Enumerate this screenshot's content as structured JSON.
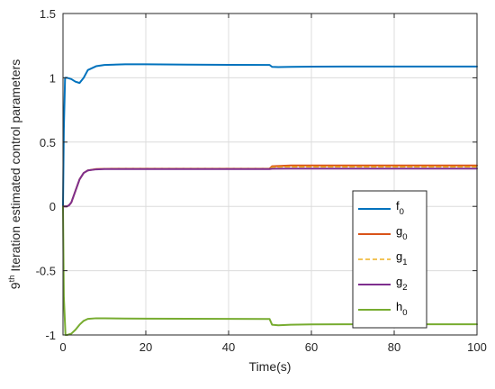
{
  "chart_data": {
    "type": "line",
    "title": "",
    "xlabel": "Time(s)",
    "ylabel": {
      "prefix": "9",
      "superscript": "th",
      "text": " Iteration estimated control parameters"
    },
    "xlim": [
      0,
      100
    ],
    "ylim": [
      -1,
      1.5
    ],
    "xticks": [
      0,
      20,
      40,
      60,
      80,
      100
    ],
    "yticks": [
      -1,
      -0.5,
      0,
      0.5,
      1,
      1.5
    ],
    "xtick_labels": [
      "0",
      "20",
      "40",
      "60",
      "80",
      "100"
    ],
    "ytick_labels": [
      "-1",
      "-0.5",
      "0",
      "0.5",
      "1",
      "1.5"
    ],
    "grid": true,
    "legend_position": "right",
    "series": [
      {
        "name": "f",
        "subscript": "0",
        "color": "#0072BD",
        "dash": "solid",
        "x": [
          0,
          0.2,
          0.5,
          1,
          2,
          3,
          4,
          5,
          6,
          8,
          10,
          15,
          20,
          30,
          40,
          49.9,
          50.5,
          52,
          55,
          60,
          70,
          80,
          90,
          100
        ],
        "y": [
          0.0,
          0.6,
          1.0,
          1.0,
          0.99,
          0.97,
          0.96,
          1.0,
          1.06,
          1.09,
          1.1,
          1.105,
          1.105,
          1.103,
          1.101,
          1.1,
          1.085,
          1.083,
          1.085,
          1.087,
          1.088,
          1.088,
          1.088,
          1.088
        ]
      },
      {
        "name": "g",
        "subscript": "0",
        "color": "#D95319",
        "dash": "solid",
        "x": [
          0,
          1,
          1.5,
          2,
          3,
          4,
          5,
          6,
          8,
          10,
          15,
          20,
          30,
          40,
          49.9,
          50.5,
          55,
          60,
          80,
          100
        ],
        "y": [
          0.0,
          0.0,
          0.01,
          0.03,
          0.12,
          0.21,
          0.26,
          0.28,
          0.29,
          0.292,
          0.293,
          0.293,
          0.293,
          0.293,
          0.293,
          0.312,
          0.318,
          0.318,
          0.318,
          0.318
        ]
      },
      {
        "name": "g",
        "subscript": "1",
        "color": "#EDB120",
        "dash": "5,3",
        "x": [
          0,
          1,
          1.5,
          2,
          3,
          4,
          5,
          6,
          8,
          10,
          15,
          20,
          30,
          40,
          49.9,
          50.5,
          55,
          60,
          80,
          100
        ],
        "y": [
          0.0,
          0.0,
          0.01,
          0.03,
          0.12,
          0.21,
          0.26,
          0.28,
          0.29,
          0.292,
          0.293,
          0.293,
          0.293,
          0.293,
          0.293,
          0.305,
          0.308,
          0.308,
          0.308,
          0.308
        ]
      },
      {
        "name": "g",
        "subscript": "2",
        "color": "#7E2F8E",
        "dash": "solid",
        "x": [
          0,
          1,
          1.5,
          2,
          3,
          4,
          5,
          6,
          8,
          10,
          15,
          20,
          30,
          40,
          49.9,
          50.5,
          55,
          60,
          80,
          100
        ],
        "y": [
          0.0,
          0.0,
          0.01,
          0.03,
          0.12,
          0.21,
          0.26,
          0.28,
          0.288,
          0.29,
          0.29,
          0.29,
          0.29,
          0.29,
          0.29,
          0.293,
          0.294,
          0.294,
          0.294,
          0.294
        ]
      },
      {
        "name": "h",
        "subscript": "0",
        "color": "#77AC30",
        "dash": "solid",
        "x": [
          0,
          0.2,
          0.6,
          1,
          2,
          3,
          4,
          5,
          6,
          8,
          10,
          15,
          20,
          30,
          40,
          49.9,
          50.5,
          52,
          55,
          60,
          70,
          80,
          90,
          100
        ],
        "y": [
          0.0,
          -0.7,
          -1.0,
          -1.0,
          -0.99,
          -0.96,
          -0.92,
          -0.89,
          -0.875,
          -0.87,
          -0.87,
          -0.872,
          -0.873,
          -0.874,
          -0.875,
          -0.876,
          -0.92,
          -0.925,
          -0.92,
          -0.918,
          -0.917,
          -0.917,
          -0.917,
          -0.917
        ]
      }
    ]
  }
}
